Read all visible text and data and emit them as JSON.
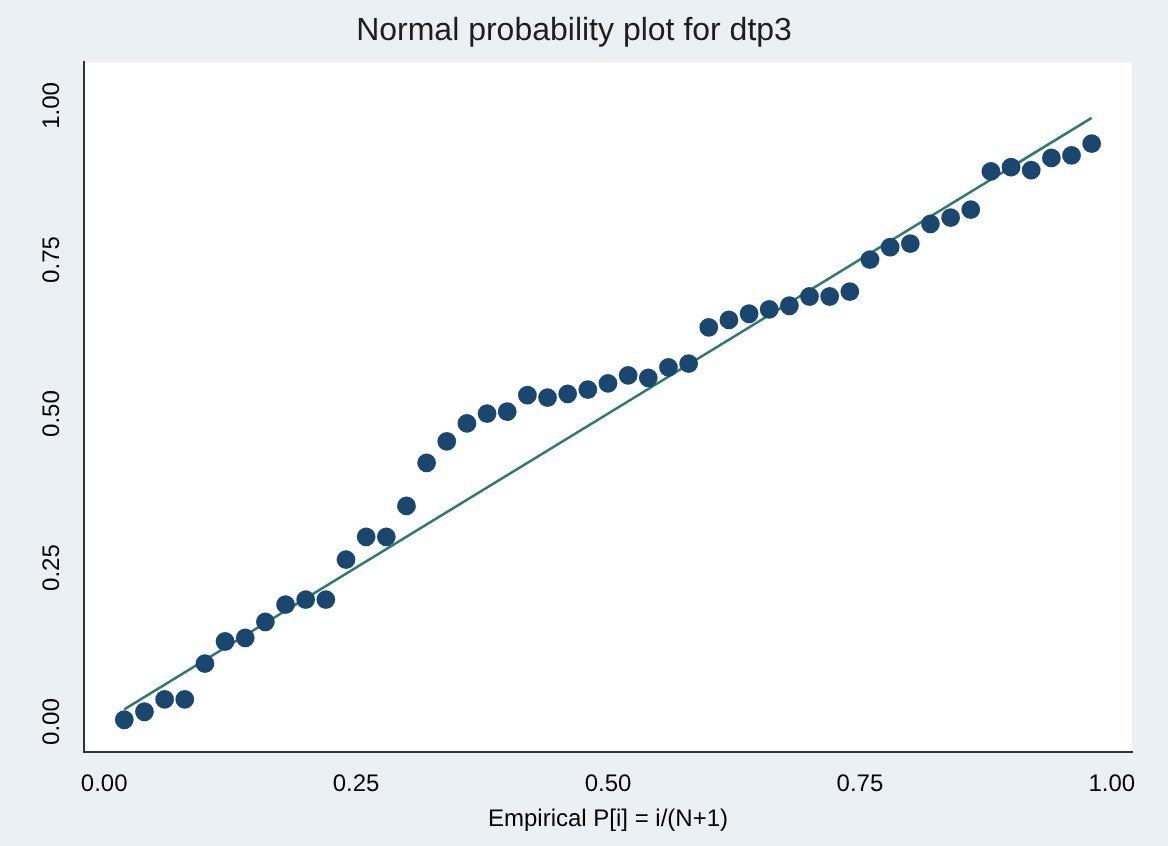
{
  "chart_data": {
    "type": "scatter",
    "title": "Normal probability plot for dtp3",
    "xlabel": "Empirical P[i] = i/(N+1)",
    "xlim": [
      -0.02,
      1.02
    ],
    "ylim": [
      -0.05,
      1.07
    ],
    "xticks": [
      {
        "value": 0,
        "label": "0.00"
      },
      {
        "value": 0.25,
        "label": "0.25"
      },
      {
        "value": 0.5,
        "label": "0.50"
      },
      {
        "value": 0.75,
        "label": "0.75"
      },
      {
        "value": 1,
        "label": "1.00"
      }
    ],
    "yticks": [
      {
        "value": 0,
        "label": "0.00"
      },
      {
        "value": 0.25,
        "label": "0.25"
      },
      {
        "value": 0.5,
        "label": "0.50"
      },
      {
        "value": 0.75,
        "label": "0.75"
      },
      {
        "value": 1,
        "label": "1.00"
      }
    ],
    "grid": false,
    "legend": false,
    "marker": "circle",
    "series": [
      {
        "color": "#1a476f",
        "x": [
          0.02,
          0.04,
          0.06,
          0.08,
          0.1,
          0.12,
          0.14,
          0.16,
          0.18,
          0.2,
          0.22,
          0.24,
          0.26,
          0.28,
          0.3,
          0.32,
          0.34,
          0.36,
          0.38,
          0.4,
          0.42,
          0.44,
          0.46,
          0.48,
          0.5,
          0.52,
          0.54,
          0.56,
          0.58,
          0.6,
          0.62,
          0.64,
          0.66,
          0.68,
          0.7,
          0.72,
          0.74,
          0.76,
          0.78,
          0.8,
          0.82,
          0.84,
          0.86,
          0.88,
          0.9,
          0.92,
          0.94,
          0.96,
          0.98
        ],
        "values": [
          0.003,
          0.016,
          0.036,
          0.036,
          0.094,
          0.13,
          0.136,
          0.162,
          0.19,
          0.198,
          0.198,
          0.263,
          0.3,
          0.3,
          0.35,
          0.42,
          0.455,
          0.484,
          0.5,
          0.503,
          0.53,
          0.526,
          0.532,
          0.539,
          0.549,
          0.562,
          0.558,
          0.575,
          0.581,
          0.64,
          0.652,
          0.662,
          0.669,
          0.675,
          0.69,
          0.69,
          0.698,
          0.75,
          0.77,
          0.776,
          0.808,
          0.818,
          0.831,
          0.893,
          0.9,
          0.895,
          0.915,
          0.919,
          0.938
        ]
      },
      {
        "type": "line",
        "color": "#2d7a6a",
        "marker": "none",
        "line_style": "solid",
        "x": [
          0.02,
          0.98
        ],
        "values": [
          0.02,
          0.98
        ]
      }
    ]
  }
}
